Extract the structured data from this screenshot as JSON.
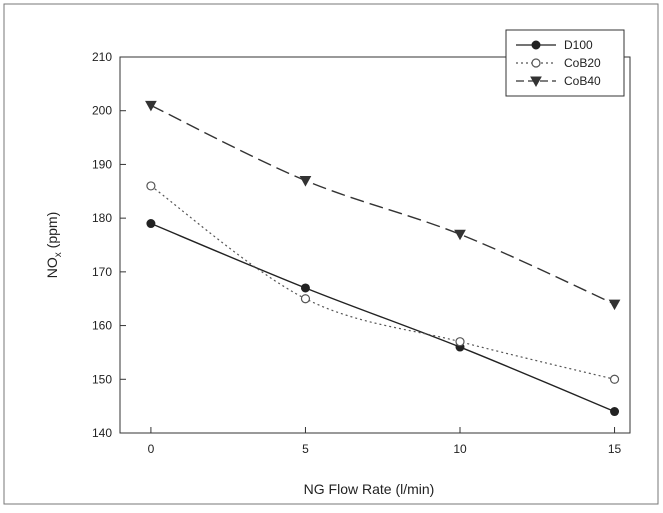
{
  "chart_data": {
    "type": "line",
    "x": [
      0,
      5,
      10,
      15
    ],
    "xlabel": "NG Flow Rate (l/min)",
    "ylabel_main": "NO",
    "ylabel_sub": "x",
    "ylabel_unit": " (ppm)",
    "xlim": [
      -1,
      15.5
    ],
    "ylim": [
      140,
      210
    ],
    "xticks": [
      0,
      5,
      10,
      15
    ],
    "yticks": [
      140,
      150,
      160,
      170,
      180,
      190,
      200,
      210
    ],
    "grid": false,
    "legend_position": "top-right",
    "series": [
      {
        "name": "D100",
        "values": [
          179,
          167,
          156,
          144
        ],
        "marker": "filled-circle",
        "line": "solid",
        "color": "#222222"
      },
      {
        "name": "CoB20",
        "values": [
          186,
          165,
          157,
          150
        ],
        "marker": "open-circle",
        "line": "dotted",
        "color": "#555555"
      },
      {
        "name": "CoB40",
        "values": [
          201,
          187,
          177,
          164
        ],
        "marker": "filled-triangle-down",
        "line": "dashed",
        "color": "#333333"
      }
    ]
  }
}
